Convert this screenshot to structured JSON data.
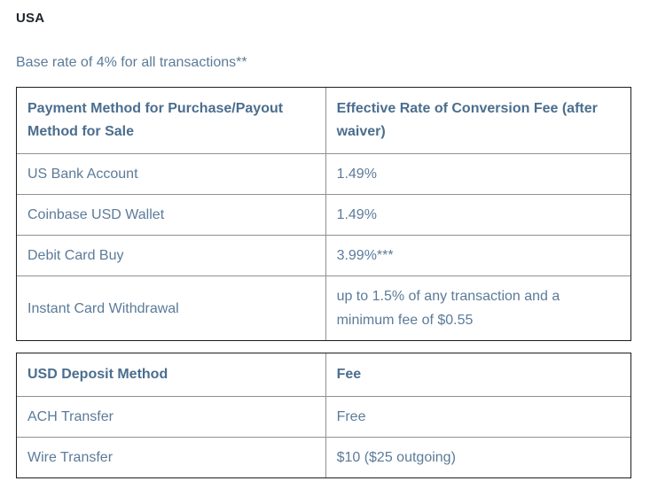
{
  "page": {
    "title": "USA",
    "subtitle": "Base rate of 4% for all transactions**"
  },
  "tables": [
    {
      "name": "conversion-fees",
      "headers": [
        "Payment Method for Purchase/Payout Method for Sale",
        "Effective Rate of Conversion Fee (after waiver)"
      ],
      "rows": [
        [
          "US Bank Account",
          "1.49%"
        ],
        [
          "Coinbase USD Wallet",
          "1.49%"
        ],
        [
          "Debit Card Buy",
          "3.99%***"
        ],
        [
          "Instant Card Withdrawal",
          "up to 1.5% of any transaction and a minimum fee of $0.55"
        ]
      ]
    },
    {
      "name": "usd-deposit-fees",
      "headers": [
        "USD Deposit Method",
        "Fee"
      ],
      "rows": [
        [
          "ACH Transfer",
          "Free"
        ],
        [
          "Wire Transfer",
          "$10 ($25 outgoing)"
        ]
      ]
    }
  ],
  "colors": {
    "outer_border": "#1c1d1f",
    "inner_border": "#8f9091",
    "header_text": "#4b6e8e",
    "body_text": "#5b7b99",
    "title_text": "#21252b",
    "page_bg": "#ffffff"
  }
}
